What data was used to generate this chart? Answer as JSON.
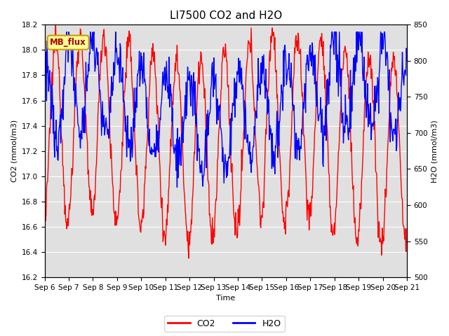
{
  "title": "LI7500 CO2 and H2O",
  "xlabel": "Time",
  "ylabel_left": "CO2 (mmol/m3)",
  "ylabel_right": "H2O (mmol/m3)",
  "co2_color": "#FF0000",
  "h2o_color": "#0000FF",
  "ylim_left": [
    16.2,
    18.2
  ],
  "ylim_right": [
    500,
    850
  ],
  "yticks_left": [
    16.2,
    16.4,
    16.6,
    16.8,
    17.0,
    17.2,
    17.4,
    17.6,
    17.8,
    18.0,
    18.2
  ],
  "yticks_right": [
    500,
    550,
    600,
    650,
    700,
    750,
    800,
    850
  ],
  "xtick_labels": [
    "Sep 6",
    "Sep 7",
    "Sep 8",
    "Sep 9",
    "Sep 10",
    "Sep 11",
    "Sep 12",
    "Sep 13",
    "Sep 14",
    "Sep 15",
    "Sep 16",
    "Sep 17",
    "Sep 18",
    "Sep 19",
    "Sep 20",
    "Sep 21"
  ],
  "plot_bg_color": "#E0E0E0",
  "fig_bg_color": "#FFFFFF",
  "grid_color": "#FFFFFF",
  "annotation_text": "MB_flux",
  "annotation_bg": "#FFFF99",
  "annotation_edge": "#C8A000",
  "linewidth": 1.0,
  "legend_labels": [
    "CO2",
    "H2O"
  ],
  "title_fontsize": 11,
  "axis_fontsize": 8,
  "tick_fontsize": 7.5
}
